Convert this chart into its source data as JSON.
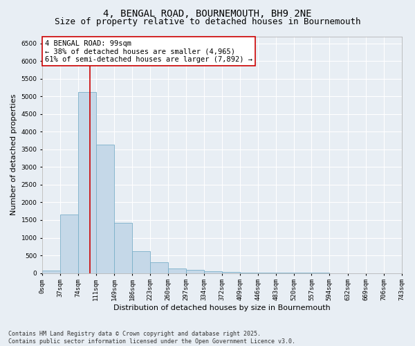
{
  "title_line1": "4, BENGAL ROAD, BOURNEMOUTH, BH9 2NE",
  "title_line2": "Size of property relative to detached houses in Bournemouth",
  "xlabel": "Distribution of detached houses by size in Bournemouth",
  "ylabel": "Number of detached properties",
  "bar_color": "#c5d8e8",
  "bar_edge_color": "#7aafc8",
  "background_color": "#e8eef4",
  "grid_color": "#ffffff",
  "annotation_line_color": "#cc0000",
  "annotation_box_color": "#cc0000",
  "annotation_text": "4 BENGAL ROAD: 99sqm\n← 38% of detached houses are smaller (4,965)\n61% of semi-detached houses are larger (7,892) →",
  "property_size_sqm": 99,
  "bin_edges": [
    0,
    37,
    74,
    111,
    149,
    186,
    223,
    260,
    297,
    334,
    372,
    409,
    446,
    483,
    520,
    557,
    594,
    632,
    669,
    706,
    743
  ],
  "bar_heights": [
    75,
    1650,
    5120,
    3640,
    1430,
    620,
    310,
    130,
    80,
    45,
    30,
    15,
    10,
    5,
    3,
    2,
    1,
    1,
    0,
    0
  ],
  "ylim": [
    0,
    6700
  ],
  "yticks": [
    0,
    500,
    1000,
    1500,
    2000,
    2500,
    3000,
    3500,
    4000,
    4500,
    5000,
    5500,
    6000,
    6500
  ],
  "footer_text": "Contains HM Land Registry data © Crown copyright and database right 2025.\nContains public sector information licensed under the Open Government Licence v3.0.",
  "title_fontsize": 10,
  "subtitle_fontsize": 9,
  "axis_label_fontsize": 8,
  "tick_fontsize": 6.5,
  "annotation_fontsize": 7.5,
  "footer_fontsize": 6
}
